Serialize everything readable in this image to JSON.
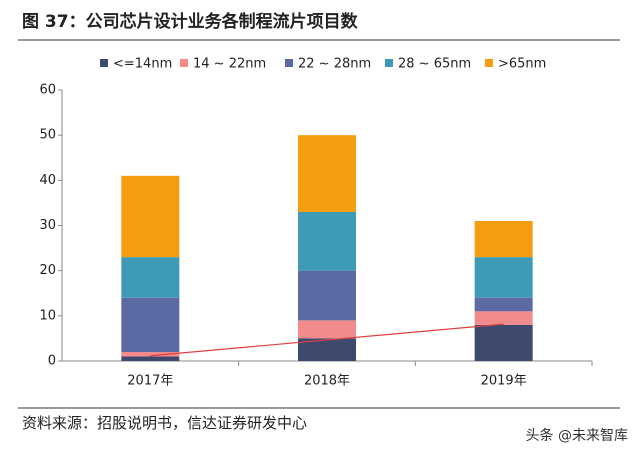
{
  "chart_data": {
    "type": "stacked_bar",
    "title": "图 37：公司芯片设计业务各制程流片项目数",
    "source": "资料来源：招股说明书，信达证券研发中心",
    "watermark": "头条 @未来智库",
    "categories": [
      "2017年",
      "2018年",
      "2019年"
    ],
    "series": [
      {
        "name": "<=14nm",
        "color": "#3e4a6d",
        "values": [
          1,
          5,
          8
        ],
        "trendline": true,
        "trend_color": "#e04040"
      },
      {
        "name": "14 ~ 22nm",
        "color": "#f28b8b",
        "values": [
          1,
          4,
          3
        ]
      },
      {
        "name": "22 ~ 28nm",
        "color": "#5b6aa3",
        "values": [
          12,
          11,
          3
        ]
      },
      {
        "name": "28 ~ 65nm",
        "color": "#3f9ab5",
        "values": [
          9,
          13,
          9
        ]
      },
      {
        "name": ">65nm",
        "color": "#f59d10",
        "values": [
          18,
          17,
          8
        ]
      }
    ],
    "ylim": [
      0,
      60
    ],
    "yticks": [
      0,
      10,
      20,
      30,
      40,
      50,
      60
    ],
    "grid": false
  }
}
